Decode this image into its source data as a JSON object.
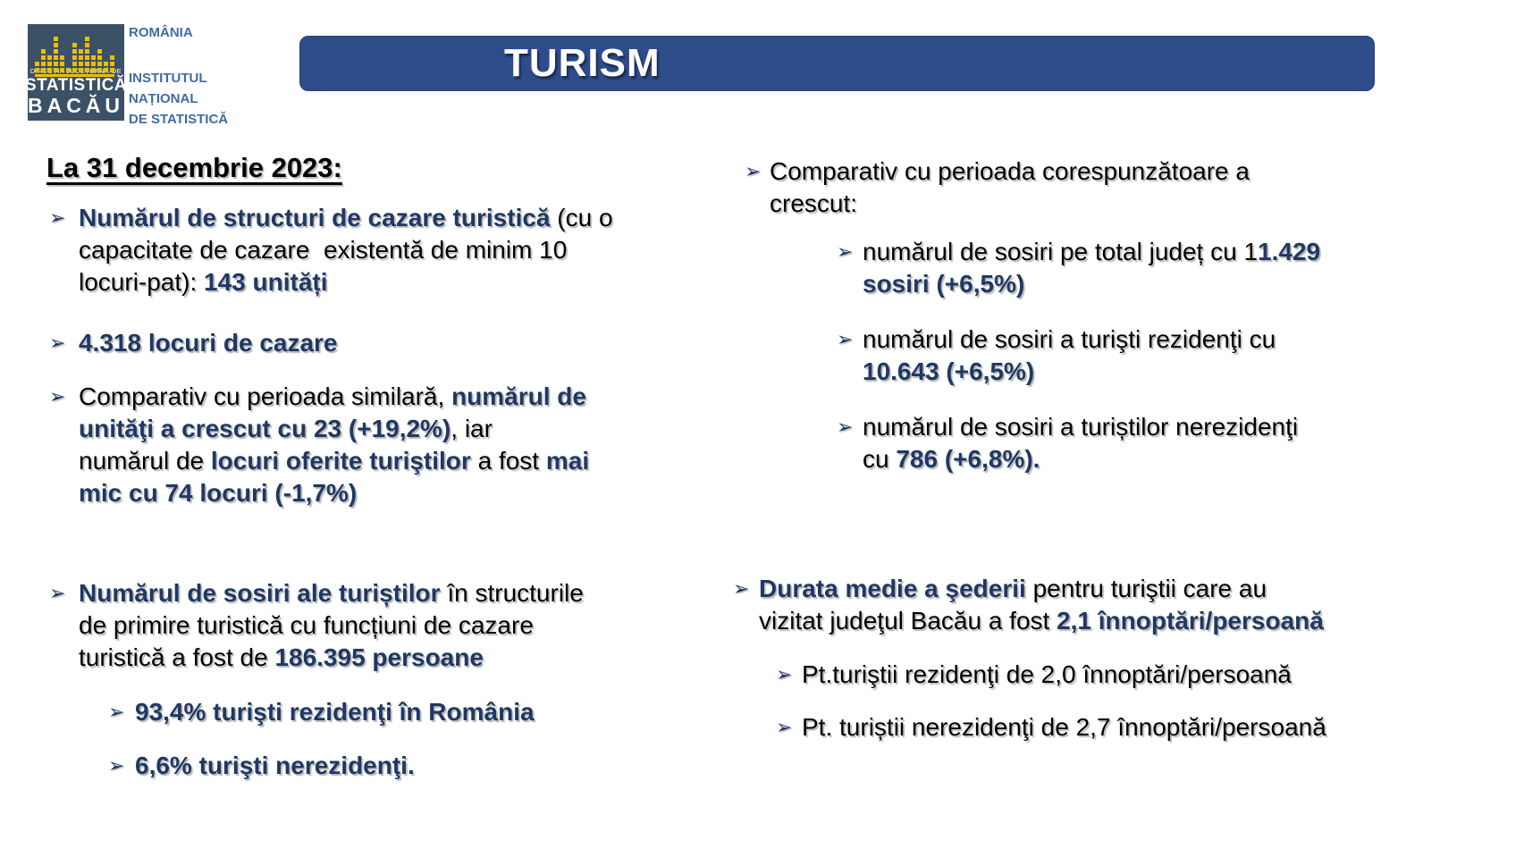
{
  "ui": {
    "bullet_glyph": "➢"
  },
  "colors": {
    "accent_blue": "#1F3864",
    "title_bar_bg": "#2E4C8A",
    "title_text": "#FFFFFF",
    "logo_bg": "#3B5166",
    "logo_accent": "#EDBE00",
    "institute_text": "#3E6CA4",
    "body_text": "#000000"
  },
  "header": {
    "title": "TURISM",
    "logo": {
      "badge_line1": "DIRECȚIA JUDEȚEANĂ DE",
      "badge_line2": "STATISTICĂ",
      "badge_line3": "BACĂU",
      "country": "ROMÂNIA",
      "institute": [
        "INSTITUTUL",
        "NAȚIONAL",
        "DE STATISTICĂ"
      ]
    }
  },
  "left_column": {
    "heading": "La 31 decembrie 2023:",
    "paragraphs": [
      {
        "segments": [
          {
            "t": "Numărul de structuri de cazare turistică",
            "s": "b"
          },
          {
            "t": " (cu o\ncapacitate de cazare  existentă de minim 10\nlocuri-pat): ",
            "s": "n"
          },
          {
            "t": "143 unități",
            "s": "b"
          }
        ]
      },
      {
        "segments": [
          {
            "t": "4.318 locuri de cazare",
            "s": "b"
          }
        ]
      },
      {
        "segments": [
          {
            "t": "Comparativ cu perioada similară, ",
            "s": "n"
          },
          {
            "t": "numărul de\nunităţi a crescut cu 23 (+19,2%)",
            "s": "b"
          },
          {
            "t": ", iar\nnumărul de ",
            "s": "n"
          },
          {
            "t": "locuri oferite turiştilor",
            "s": "b"
          },
          {
            "t": " a fost ",
            "s": "n"
          },
          {
            "t": "mai\nmic cu 74 locuri (-1,7%)",
            "s": "b"
          }
        ]
      },
      {
        "segments": [
          {
            "t": "Numărul de sosiri ale turiștilor",
            "s": "b"
          },
          {
            "t": " în structurile\nde primire turistică cu funcțiuni de cazare\nturistică a fost de ",
            "s": "n"
          },
          {
            "t": "186.395 persoane",
            "s": "b"
          }
        ]
      },
      {
        "segments": [
          {
            "t": "93,4% turişti rezidenţi în România",
            "s": "b"
          }
        ]
      },
      {
        "segments": [
          {
            "t": "6,6% turişti nerezidenţi.",
            "s": "b"
          }
        ]
      }
    ]
  },
  "right_column": {
    "paragraphs": [
      {
        "segments": [
          {
            "t": "Comparativ cu perioada corespunzătoare a\ncrescut:",
            "s": "n"
          }
        ]
      },
      {
        "segments": [
          {
            "t": "numărul de sosiri pe total județ cu 1",
            "s": "n"
          },
          {
            "t": "1.429\nsosiri (+6,5%)",
            "s": "b"
          }
        ]
      },
      {
        "segments": [
          {
            "t": "numărul de sosiri a turişti rezidenţi cu\n",
            "s": "n"
          },
          {
            "t": "10.643 (+6,5%)",
            "s": "b"
          }
        ]
      },
      {
        "segments": [
          {
            "t": "numărul de sosiri a turiștilor nerezidenţi\ncu ",
            "s": "n"
          },
          {
            "t": "786 (+6,8%).",
            "s": "b"
          }
        ]
      },
      {
        "segments": [
          {
            "t": "Durata medie a şederii",
            "s": "b"
          },
          {
            "t": " pentru turiştii care au\nvizitat judeţul Bacău a fost ",
            "s": "n"
          },
          {
            "t": "2,1 înnoptări/persoană",
            "s": "b"
          }
        ]
      },
      {
        "segments": [
          {
            "t": "Pt.turiştii rezidenţi de 2,0 înnoptări/persoană",
            "s": "n"
          }
        ]
      },
      {
        "segments": [
          {
            "t": "Pt. turiștii nerezidenţi de 2,7 înnoptări/persoană",
            "s": "n"
          }
        ]
      }
    ]
  }
}
